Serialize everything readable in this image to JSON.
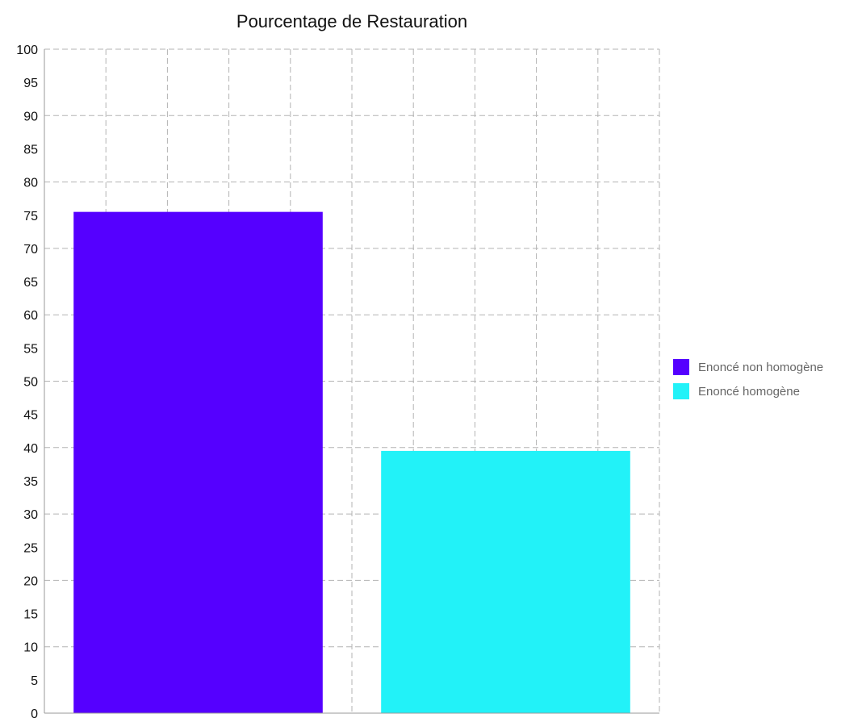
{
  "chart_data": {
    "type": "bar",
    "title": "Pourcentage de Restauration",
    "xlabel": "",
    "ylabel": "",
    "ylim": [
      0,
      100
    ],
    "yticks": [
      0,
      5,
      10,
      15,
      20,
      25,
      30,
      35,
      40,
      45,
      50,
      55,
      60,
      65,
      70,
      75,
      80,
      85,
      90,
      95,
      100
    ],
    "grid": true,
    "legend_position": "right",
    "series": [
      {
        "name": "Enoncé non homogène",
        "value": 75.5,
        "color": "#5500ff"
      },
      {
        "name": "Enoncé homogène",
        "value": 39.5,
        "color": "#22f2f8"
      }
    ]
  }
}
